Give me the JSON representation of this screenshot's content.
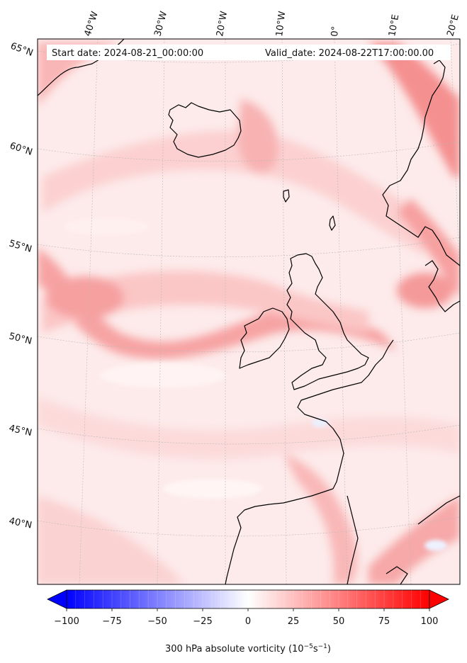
{
  "header": {
    "start_date": "Start date: 2024-08-21_00:00:00",
    "valid_date": "Valid_date: 2024-08-22T17:00:00.00"
  },
  "longitude_labels": [
    "40°W",
    "30°W",
    "20°W",
    "10°W",
    "0°",
    "10°E",
    "20°E"
  ],
  "latitude_labels": [
    "65°N",
    "60°N",
    "55°N",
    "50°N",
    "45°N",
    "40°N"
  ],
  "colorbar": {
    "min": -100,
    "max": 100,
    "ticks": [
      "−100",
      "−75",
      "−50",
      "−25",
      "0",
      "25",
      "50",
      "75",
      "100"
    ],
    "label_text": "300 hPa absolute vorticity (10",
    "label_exp1": "−5",
    "label_mid": "s",
    "label_exp2": "−1",
    "label_end": ")",
    "colors": {
      "negative": "#0000ff",
      "zero": "#ffffff",
      "positive": "#ff0000"
    }
  },
  "colors": {
    "coastline": "#000000",
    "gridline": "#b0b0b0",
    "field_light": "#fde3e3",
    "field_medium": "#fbc4c4",
    "field_strong": "#f79c9c"
  }
}
